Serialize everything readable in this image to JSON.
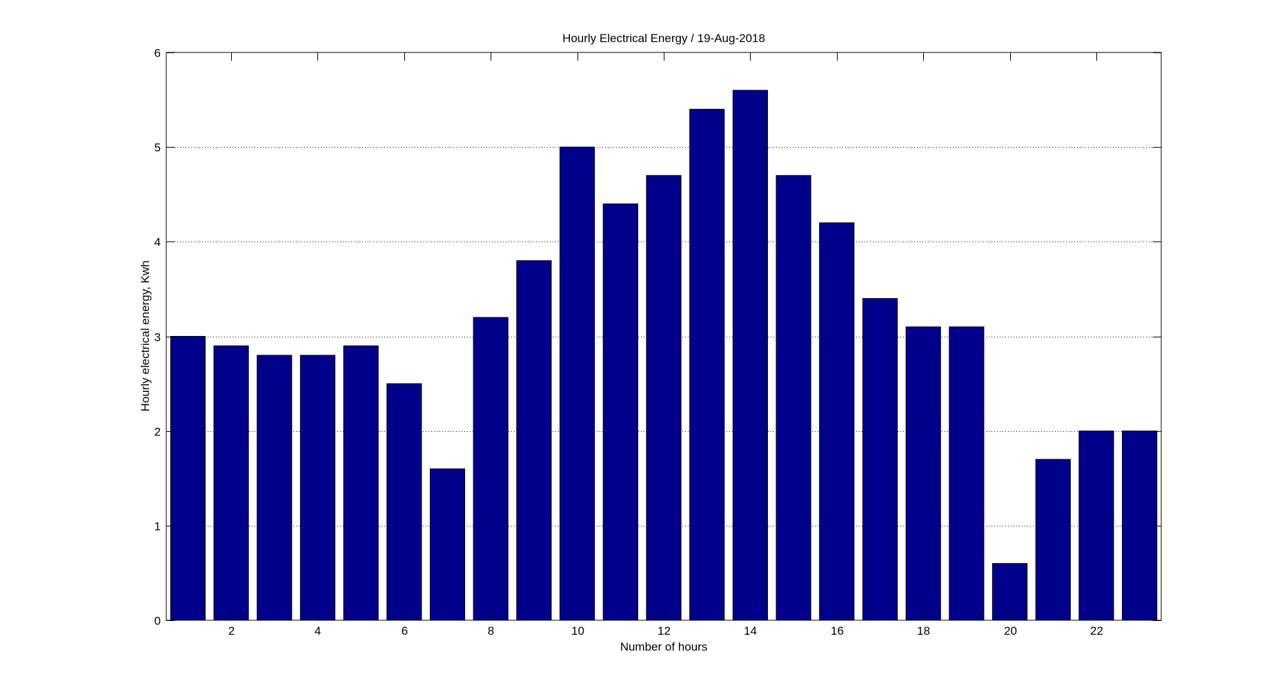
{
  "chart_data": {
    "type": "bar",
    "title": "Hourly Electrical Energy / 19-Aug-2018",
    "xlabel": "Number of hours",
    "ylabel": "Hourly electrical energy, Kwh",
    "x": [
      1,
      2,
      3,
      4,
      5,
      6,
      7,
      8,
      9,
      10,
      11,
      12,
      13,
      14,
      15,
      16,
      17,
      18,
      19,
      20,
      21,
      22,
      23
    ],
    "values": [
      3.0,
      2.9,
      2.8,
      2.8,
      2.9,
      2.5,
      1.6,
      3.2,
      3.8,
      5.0,
      4.4,
      4.7,
      5.4,
      5.6,
      4.7,
      4.2,
      3.4,
      3.1,
      3.1,
      0.6,
      1.7,
      2.0,
      2.0
    ],
    "xlim": [
      0.5,
      23.5
    ],
    "ylim": [
      0,
      6
    ],
    "xticks": [
      2,
      4,
      6,
      8,
      10,
      12,
      14,
      16,
      18,
      20,
      22
    ],
    "yticks": [
      0,
      1,
      2,
      3,
      4,
      5,
      6
    ],
    "grid": "y-dotted",
    "bar_color": "#00008b",
    "bar_edge_color": "#000000"
  }
}
